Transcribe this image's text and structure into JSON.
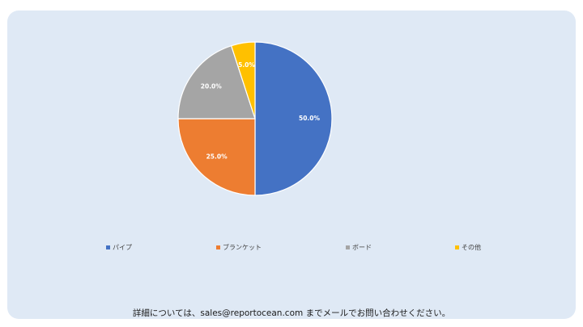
{
  "chart_data": {
    "type": "pie",
    "categories": [
      "パイプ",
      "ブランケット",
      "ボード",
      "その他"
    ],
    "values": [
      50.0,
      25.0,
      20.0,
      5.0
    ],
    "data_labels": [
      "50.0%",
      "25.0%",
      "20.0%",
      "5.0%"
    ],
    "colors": [
      "#4472c4",
      "#ed7d31",
      "#a5a5a5",
      "#ffc000"
    ],
    "legend_position": "bottom",
    "title": ""
  },
  "legend": {
    "items": [
      {
        "label": "パイプ",
        "color": "#4472c4"
      },
      {
        "label": "ブランケット",
        "color": "#ed7d31"
      },
      {
        "label": "ボード",
        "color": "#a5a5a5"
      },
      {
        "label": "その他",
        "color": "#ffc000"
      }
    ]
  },
  "footer": {
    "text": "詳細については、sales@reportocean.com までメールでお問い合わせください。"
  },
  "colors": {
    "background": "#dfe9f5"
  }
}
